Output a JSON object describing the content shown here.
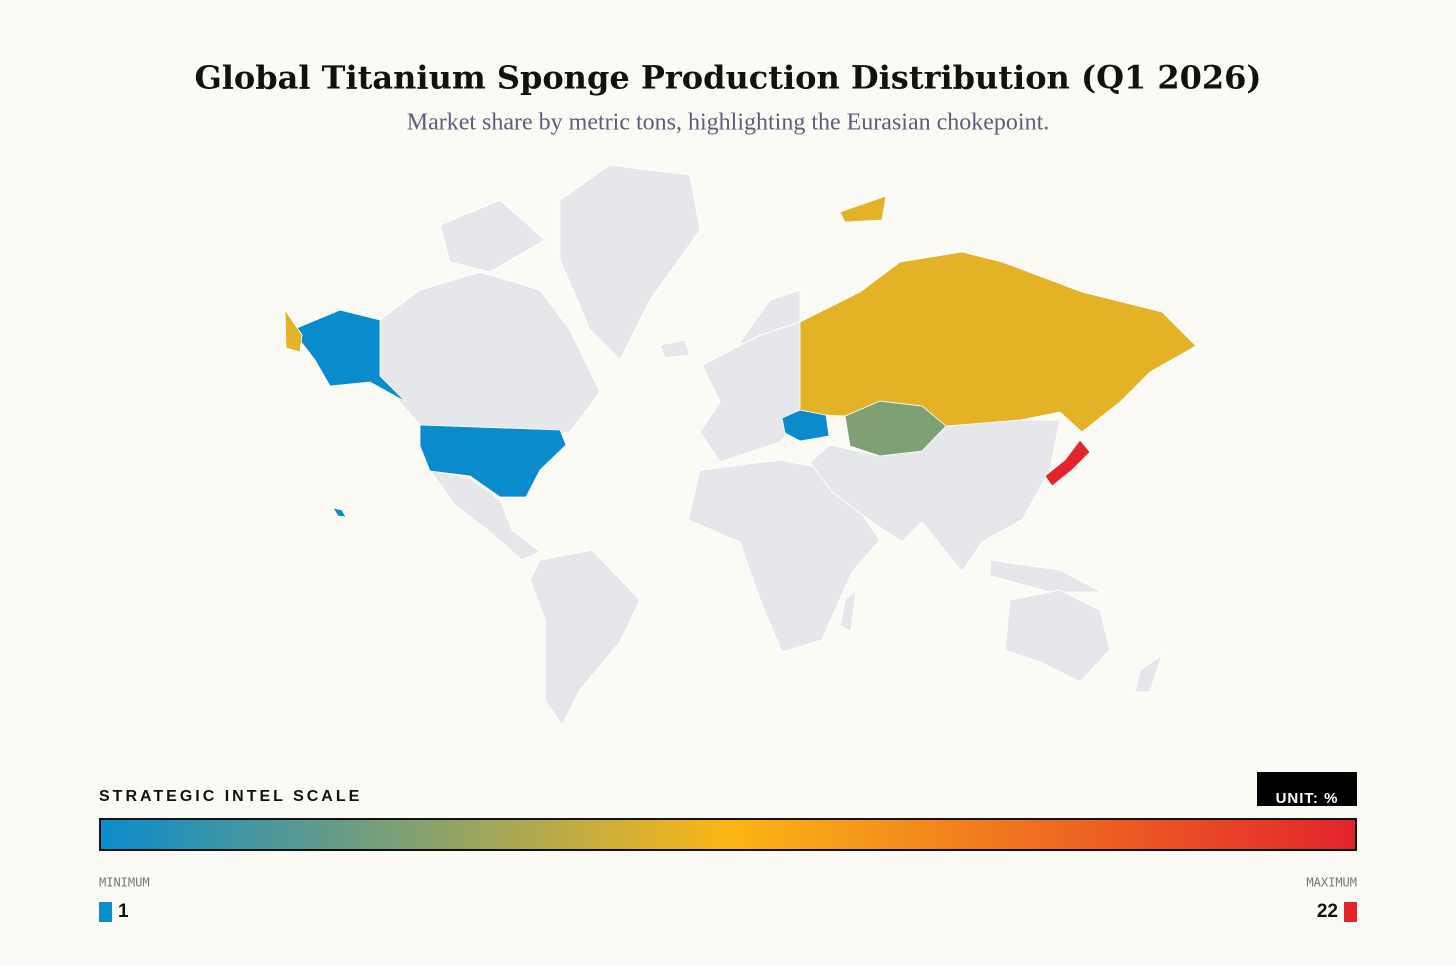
{
  "chart_data": {
    "type": "choropleth",
    "title": "Global Titanium Sponge Production Distribution (Q1 2026)",
    "subtitle": "Market share by metric tons, highlighting the Eurasian chokepoint.",
    "values": [
      1,
      1,
      6,
      10.5,
      22
    ],
    "vlim": [
      1,
      22
    ],
    "colorscale": [
      "#0a8ccc",
      "#fbb614",
      "#e3242b"
    ],
    "no_data_color": "#e5e7eb",
    "legend_title": "STRATEGIC INTEL SCALE",
    "unit_label": "UNIT: %",
    "min_label": "MINIMUM",
    "max_label": "MAXIMUM"
  }
}
